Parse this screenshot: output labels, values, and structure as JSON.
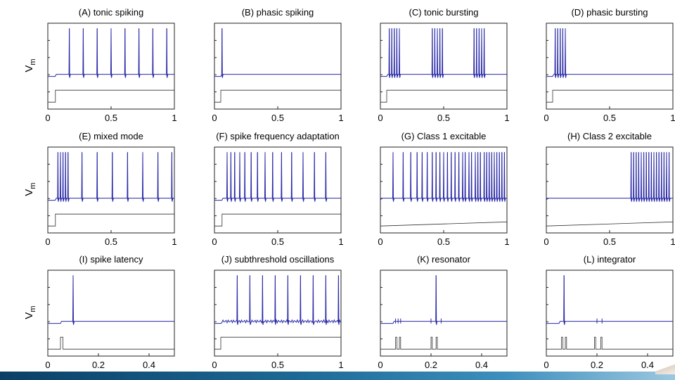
{
  "colors": {
    "voltage_trace": "#2a2aa8",
    "input_trace": "#333333",
    "axes": "#222222",
    "background": "#ffffff",
    "bottom_band": "#1d6a96"
  },
  "y_label": "V",
  "y_label_subscript": "m",
  "chart_data": [
    {
      "id": "A",
      "title": "(A) tonic spiking",
      "type": "line",
      "xlim": [
        0,
        1
      ],
      "xticks": [
        0,
        0.5,
        1
      ],
      "xtick_labels": [
        "0",
        "0.5",
        "1"
      ],
      "series": [
        {
          "kind": "voltage",
          "pattern": "tonic",
          "input_onset": 0.06,
          "rest": 0.28,
          "spike_times": [
            0.17,
            0.28,
            0.39,
            0.5,
            0.61,
            0.72,
            0.83,
            0.94
          ]
        },
        {
          "kind": "input",
          "x": [
            0,
            0.06,
            0.06,
            1
          ],
          "y": [
            0,
            0,
            1,
            1
          ]
        }
      ]
    },
    {
      "id": "B",
      "title": "(B) phasic spiking",
      "type": "line",
      "xlim": [
        0,
        1
      ],
      "xticks": [
        0,
        0.5,
        1
      ],
      "xtick_labels": [
        "0",
        "0.5",
        "1"
      ],
      "series": [
        {
          "kind": "voltage",
          "pattern": "phasic",
          "input_onset": 0.05,
          "rest": 0.28,
          "spike_times": [
            0.06
          ]
        },
        {
          "kind": "input",
          "x": [
            0,
            0.05,
            0.05,
            1
          ],
          "y": [
            0,
            0,
            1,
            1
          ]
        }
      ]
    },
    {
      "id": "C",
      "title": "(C) tonic bursting",
      "type": "line",
      "xlim": [
        0,
        1
      ],
      "xticks": [
        0,
        0.5,
        1
      ],
      "xtick_labels": [
        "0",
        "0.5",
        "1"
      ],
      "series": [
        {
          "kind": "voltage",
          "pattern": "bursts",
          "input_onset": 0.05,
          "rest": 0.28,
          "bursts": [
            [
              0.07,
              0.09,
              0.11,
              0.13,
              0.15
            ],
            [
              0.41,
              0.43,
              0.45,
              0.47,
              0.49
            ],
            [
              0.74,
              0.76,
              0.78,
              0.8,
              0.82
            ]
          ]
        },
        {
          "kind": "input",
          "x": [
            0,
            0.05,
            0.05,
            1
          ],
          "y": [
            0,
            0,
            1,
            1
          ]
        }
      ]
    },
    {
      "id": "D",
      "title": "(D) phasic bursting",
      "type": "line",
      "xlim": [
        0,
        1
      ],
      "xticks": [
        0,
        0.5,
        1
      ],
      "xtick_labels": [
        "0",
        "0.5",
        "1"
      ],
      "series": [
        {
          "kind": "voltage",
          "pattern": "bursts",
          "input_onset": 0.05,
          "rest": 0.28,
          "bursts": [
            [
              0.07,
              0.09,
              0.11,
              0.13,
              0.15
            ]
          ]
        },
        {
          "kind": "input",
          "x": [
            0,
            0.05,
            0.05,
            1
          ],
          "y": [
            0,
            0,
            1,
            1
          ]
        }
      ]
    },
    {
      "id": "E",
      "title": "(E) mixed mode",
      "type": "line",
      "xlim": [
        0,
        1
      ],
      "xticks": [
        0,
        0.5,
        1
      ],
      "xtick_labels": [
        "0",
        "0.5",
        "1"
      ],
      "series": [
        {
          "kind": "voltage",
          "pattern": "tonic",
          "input_onset": 0.06,
          "rest": 0.28,
          "spike_times": [
            0.08,
            0.1,
            0.12,
            0.14,
            0.16,
            0.27,
            0.39,
            0.51,
            0.63,
            0.75,
            0.87,
            0.98
          ]
        },
        {
          "kind": "input",
          "x": [
            0,
            0.06,
            0.06,
            1
          ],
          "y": [
            0,
            0,
            1,
            1
          ]
        }
      ]
    },
    {
      "id": "F",
      "title": "(F) spike frequency adaptation",
      "type": "line",
      "xlim": [
        0,
        1
      ],
      "xticks": [
        0,
        0.5,
        1
      ],
      "xtick_labels": [
        "0",
        "0.5",
        "1"
      ],
      "series": [
        {
          "kind": "voltage",
          "pattern": "tonic",
          "input_onset": 0.06,
          "rest": 0.28,
          "spike_times": [
            0.1,
            0.13,
            0.16,
            0.2,
            0.24,
            0.29,
            0.34,
            0.4,
            0.46,
            0.53,
            0.61,
            0.7,
            0.79,
            0.88
          ]
        },
        {
          "kind": "input",
          "x": [
            0,
            0.06,
            0.06,
            1
          ],
          "y": [
            0,
            0,
            1,
            1
          ]
        }
      ]
    },
    {
      "id": "G",
      "title": "(G) Class 1 excitable",
      "type": "line",
      "xlim": [
        0,
        1
      ],
      "xticks": [
        0,
        0.5,
        1
      ],
      "xtick_labels": [
        "0",
        "0.5",
        "1"
      ],
      "series": [
        {
          "kind": "voltage",
          "pattern": "tonic",
          "input_onset": 0.0,
          "rest": 0.28,
          "spike_times": [
            0.1,
            0.18,
            0.24,
            0.29,
            0.33,
            0.37,
            0.41,
            0.44,
            0.47,
            0.5,
            0.53,
            0.56,
            0.59,
            0.62,
            0.65,
            0.67,
            0.7,
            0.72,
            0.75,
            0.77,
            0.79,
            0.82,
            0.84,
            0.86,
            0.88,
            0.9,
            0.92,
            0.94,
            0.96,
            0.98
          ]
        },
        {
          "kind": "input",
          "x": [
            0,
            1
          ],
          "y": [
            0,
            0.35
          ]
        }
      ]
    },
    {
      "id": "H",
      "title": "(H) Class 2 excitable",
      "type": "line",
      "xlim": [
        0,
        1
      ],
      "xticks": [
        0,
        0.5,
        1
      ],
      "xtick_labels": [
        "0",
        "0.5",
        "1"
      ],
      "series": [
        {
          "kind": "voltage",
          "pattern": "tonic",
          "input_onset": 0.0,
          "rest": 0.28,
          "spike_times": [
            0.67,
            0.69,
            0.71,
            0.73,
            0.75,
            0.77,
            0.79,
            0.81,
            0.83,
            0.85,
            0.87,
            0.89,
            0.91,
            0.93,
            0.95,
            0.97
          ]
        },
        {
          "kind": "input",
          "x": [
            0,
            1
          ],
          "y": [
            0,
            0.35
          ]
        }
      ]
    },
    {
      "id": "I",
      "title": "(I) spike latency",
      "type": "line",
      "xlim": [
        0,
        0.5
      ],
      "xticks": [
        0,
        0.2,
        0.4
      ],
      "xtick_labels": [
        "0",
        "0.2",
        "0.4"
      ],
      "series": [
        {
          "kind": "voltage",
          "pattern": "latency",
          "input_onset": 0.05,
          "rest": 0.28,
          "spike_times": [
            0.1
          ]
        },
        {
          "kind": "input",
          "x": [
            0,
            0.05,
            0.05,
            0.06,
            0.06,
            0.5
          ],
          "y": [
            0,
            0,
            1,
            1,
            0,
            0
          ]
        }
      ]
    },
    {
      "id": "J",
      "title": "(J) subthreshold oscillations",
      "type": "line",
      "xlim": [
        0,
        1
      ],
      "xticks": [
        0,
        0.5,
        1
      ],
      "xtick_labels": [
        "0",
        "0.5",
        "1"
      ],
      "series": [
        {
          "kind": "voltage",
          "pattern": "oscillating",
          "input_onset": 0.05,
          "rest": 0.28,
          "spike_times": [
            0.18,
            0.28,
            0.38,
            0.48,
            0.58,
            0.68,
            0.78,
            0.88,
            0.98
          ]
        },
        {
          "kind": "input",
          "x": [
            0,
            0.05,
            0.05,
            1
          ],
          "y": [
            0,
            0,
            1,
            1
          ]
        }
      ]
    },
    {
      "id": "K",
      "title": "(K) resonator",
      "type": "line",
      "xlim": [
        0,
        0.5
      ],
      "xticks": [
        0,
        0.2,
        0.4
      ],
      "xtick_labels": [
        "0",
        "0.2",
        "0.4"
      ],
      "series": [
        {
          "kind": "voltage",
          "pattern": "resonator",
          "input_onset": 0.05,
          "rest": 0.28,
          "spike_times": [
            0.22
          ],
          "bumps": [
            0.06,
            0.07,
            0.08,
            0.2,
            0.24
          ]
        },
        {
          "kind": "input",
          "x": [
            0,
            0.06,
            0.06,
            0.065,
            0.065,
            0.075,
            0.075,
            0.08,
            0.08,
            0.2,
            0.2,
            0.205,
            0.205,
            0.22,
            0.22,
            0.225,
            0.225,
            0.5
          ],
          "y": [
            0,
            0,
            1,
            1,
            0,
            0,
            1,
            1,
            0,
            0,
            1,
            1,
            0,
            0,
            1,
            1,
            0,
            0
          ]
        }
      ]
    },
    {
      "id": "L",
      "title": "(L) integrator",
      "type": "line",
      "xlim": [
        0,
        0.5
      ],
      "xticks": [
        0,
        0.2,
        0.4
      ],
      "xtick_labels": [
        "0",
        "0.2",
        "0.4"
      ],
      "series": [
        {
          "kind": "voltage",
          "pattern": "integrator",
          "input_onset": 0.05,
          "rest": 0.28,
          "spike_times": [
            0.07
          ],
          "bumps": [
            0.2,
            0.22
          ]
        },
        {
          "kind": "input",
          "x": [
            0,
            0.06,
            0.06,
            0.065,
            0.065,
            0.075,
            0.075,
            0.08,
            0.08,
            0.19,
            0.19,
            0.195,
            0.195,
            0.215,
            0.215,
            0.22,
            0.22,
            0.5
          ],
          "y": [
            0,
            0,
            1,
            1,
            0,
            0,
            1,
            1,
            0,
            0,
            1,
            1,
            0,
            0,
            1,
            1,
            0,
            0
          ]
        }
      ]
    }
  ]
}
